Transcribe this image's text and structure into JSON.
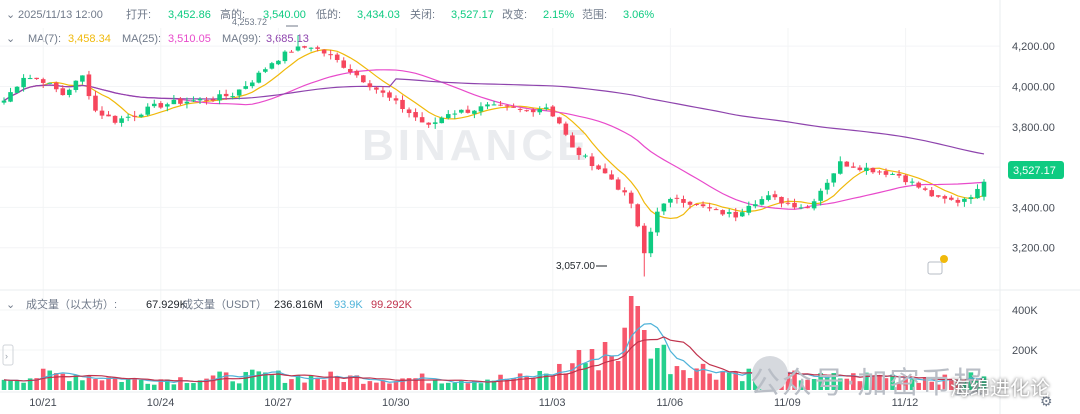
{
  "header": {
    "interval_icon": "chevron-down-icon",
    "date": "2025/11/13 12:00",
    "open_label": "打开:",
    "open": "3,452.86",
    "high_label": "高的:",
    "high": "3,540.00",
    "low_label": "低的:",
    "low": "3,434.03",
    "close_label": "关闭:",
    "close": "3,527.17",
    "change_label": "改变:",
    "change": "2.15%",
    "range_label": "范围:",
    "range": "3.06%"
  },
  "ma_legend": {
    "ma7_label": "MA(7):",
    "ma7": "3,458.34",
    "ma25_label": "MA(25):",
    "ma25": "3,510.05",
    "ma99_label": "MA(99):",
    "ma99": "3,685.13"
  },
  "vol_legend": {
    "label": "成交量（以太坊）:",
    "value": "67.929K",
    "usdt_label": "成交量（USDT）",
    "usdt_value": "236.816M",
    "ma_a": "93.9K",
    "ma_b": "99.292K"
  },
  "annotations": {
    "high_mark": "4,253.72",
    "low_mark": "3,057.00",
    "last_price": "3,527.17"
  },
  "watermark": "BINANCE",
  "overlay_text": "公众号·加密币报",
  "corner_text": "海绵进化论",
  "colors": {
    "up": "#0ecb81",
    "down": "#f6465d",
    "ma7": "#f0b90b",
    "ma25": "#e84acb",
    "ma99": "#8e44ad",
    "vol_ma_a": "#4fb3d9",
    "vol_ma_b": "#c0334d"
  },
  "chart_data": {
    "type": "candlestick",
    "price_axis": {
      "ticks": [
        "4,200.00",
        "4,000.00",
        "3,800.00",
        "3,600.00",
        "3,400.00",
        "3,200.00"
      ],
      "ylim": [
        3000,
        4290
      ]
    },
    "volume_axis": {
      "ticks": [
        "400K",
        "200K"
      ],
      "ylim": [
        0,
        470000
      ]
    },
    "x_ticks": [
      "10/21",
      "10/24",
      "10/27",
      "10/30",
      "11/03",
      "11/06",
      "11/09",
      "11/12"
    ],
    "x_tick_index": [
      6,
      24,
      42,
      60,
      84,
      102,
      120,
      138
    ],
    "price_anchors": [
      [
        0,
        3930
      ],
      [
        3,
        4050
      ],
      [
        6,
        4030
      ],
      [
        9,
        3960
      ],
      [
        12,
        4050
      ],
      [
        14,
        3880
      ],
      [
        17,
        3830
      ],
      [
        20,
        3860
      ],
      [
        23,
        3900
      ],
      [
        26,
        3920
      ],
      [
        29,
        3930
      ],
      [
        32,
        3940
      ],
      [
        35,
        3960
      ],
      [
        38,
        4030
      ],
      [
        41,
        4120
      ],
      [
        44,
        4180
      ],
      [
        47,
        4200
      ],
      [
        50,
        4150
      ],
      [
        53,
        4080
      ],
      [
        56,
        4010
      ],
      [
        59,
        3940
      ],
      [
        62,
        3870
      ],
      [
        65,
        3800
      ],
      [
        68,
        3870
      ],
      [
        71,
        3880
      ],
      [
        74,
        3900
      ],
      [
        77,
        3890
      ],
      [
        80,
        3880
      ],
      [
        83,
        3900
      ],
      [
        85,
        3820
      ],
      [
        87,
        3690
      ],
      [
        90,
        3620
      ],
      [
        93,
        3540
      ],
      [
        96,
        3420
      ],
      [
        98,
        3170
      ],
      [
        100,
        3390
      ],
      [
        103,
        3450
      ],
      [
        106,
        3410
      ],
      [
        109,
        3380
      ],
      [
        112,
        3360
      ],
      [
        114,
        3420
      ],
      [
        117,
        3450
      ],
      [
        120,
        3420
      ],
      [
        123,
        3400
      ],
      [
        126,
        3530
      ],
      [
        128,
        3620
      ],
      [
        131,
        3600
      ],
      [
        134,
        3580
      ],
      [
        137,
        3560
      ],
      [
        140,
        3500
      ],
      [
        143,
        3440
      ],
      [
        146,
        3430
      ],
      [
        149,
        3480
      ],
      [
        150,
        3527
      ]
    ],
    "volume_anchors": [
      [
        0,
        60
      ],
      [
        10,
        80
      ],
      [
        20,
        50
      ],
      [
        30,
        60
      ],
      [
        40,
        70
      ],
      [
        55,
        60
      ],
      [
        70,
        55
      ],
      [
        80,
        60
      ],
      [
        86,
        110
      ],
      [
        90,
        150
      ],
      [
        94,
        200
      ],
      [
        97,
        330
      ],
      [
        99,
        260
      ],
      [
        102,
        140
      ],
      [
        108,
        100
      ],
      [
        115,
        80
      ],
      [
        125,
        60
      ],
      [
        135,
        70
      ],
      [
        145,
        50
      ],
      [
        150,
        68
      ]
    ],
    "volume_spikes": [
      [
        88,
        200
      ],
      [
        92,
        240
      ],
      [
        96,
        470
      ],
      [
        98,
        300
      ],
      [
        97,
        420
      ]
    ],
    "last_candle": {
      "open": 3452.86,
      "high": 3540.0,
      "low": 3434.03,
      "close": 3527.17
    },
    "ma_values": {
      "ma7": 3458.34,
      "ma25": 3510.05,
      "ma99": 3685.13
    },
    "volume_ma_values": [
      93900,
      99292
    ]
  }
}
